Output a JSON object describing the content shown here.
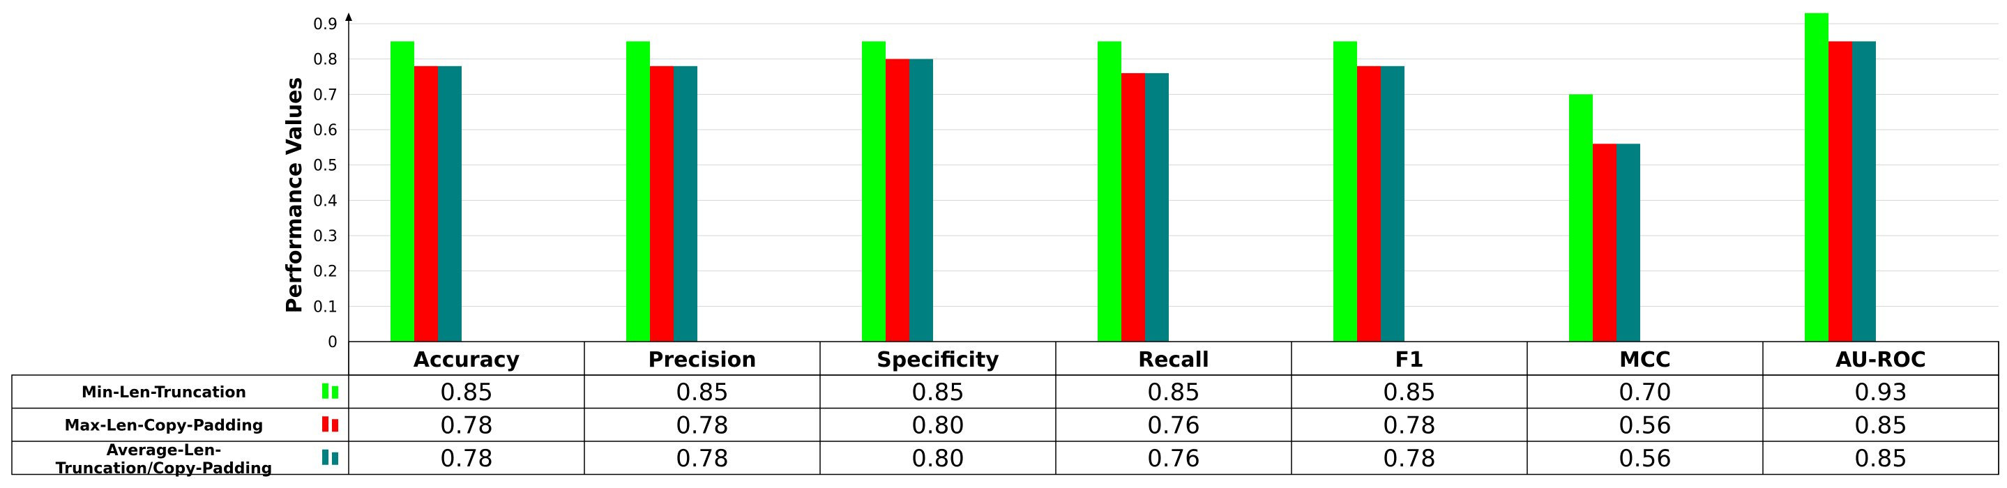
{
  "chart_data": {
    "type": "bar",
    "categories": [
      "Accuracy",
      "Precision",
      "Specificity",
      "Recall",
      "F1",
      "MCC",
      "AU-ROC"
    ],
    "series": [
      {
        "name": "Min-Len-Truncation",
        "color": "#00ff00",
        "values": [
          0.85,
          0.85,
          0.85,
          0.85,
          0.85,
          0.7,
          0.93
        ],
        "labels": [
          "0.85",
          "0.85",
          "0.85",
          "0.85",
          "0.85",
          "0.70",
          "0.93"
        ]
      },
      {
        "name": "Max-Len-Copy-Padding",
        "color": "#ff0000",
        "values": [
          0.78,
          0.78,
          0.8,
          0.76,
          0.78,
          0.56,
          0.85
        ],
        "labels": [
          "0.78",
          "0.78",
          "0.80",
          "0.76",
          "0.78",
          "0.56",
          "0.85"
        ]
      },
      {
        "name": "Average-Len-Truncation/Copy-Padding",
        "color": "#008080",
        "values": [
          0.78,
          0.78,
          0.8,
          0.76,
          0.78,
          0.56,
          0.85
        ],
        "labels": [
          "0.78",
          "0.78",
          "0.80",
          "0.76",
          "0.78",
          "0.56",
          "0.85"
        ]
      }
    ],
    "ylabel": "Performance Values",
    "ylim": [
      0,
      0.9
    ],
    "yticks": [
      "0",
      "0.1",
      "0.2",
      "0.3",
      "0.4",
      "0.5",
      "0.6",
      "0.7",
      "0.8",
      "0.9"
    ],
    "grid": true,
    "legend": "data-table-left"
  }
}
